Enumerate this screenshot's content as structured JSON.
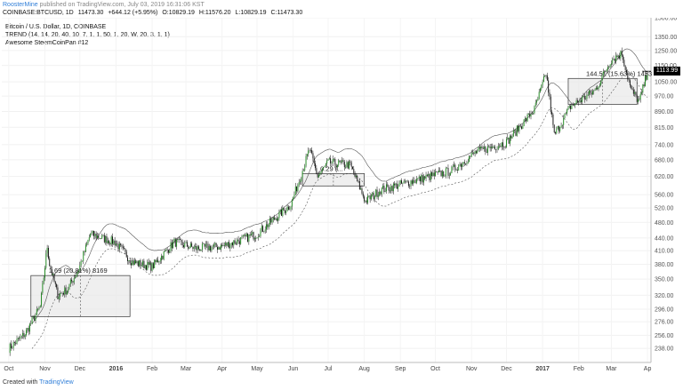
{
  "header": {
    "author": "RoosterMine",
    "published": "published on TradingView.com, July 03, 2019 16:31:06 KST",
    "symbol": "COINBASE:BTCUSD, 1D",
    "open": "11473.30",
    "change": "+644.12 (+5.95%)",
    "ohlc_o": "O:10829.19",
    "ohlc_h": "H:11576.20",
    "ohlc_l": "L:10829.19",
    "ohlc_c": "C:11473.30"
  },
  "legend": {
    "title": "Bitcoin / U.S. Dollar, 1D, COINBASE",
    "trend": "TREND (14, 14, 20, 40, 10, 7, 1, 1, 50, 1, 20, W, 20, 3, 1, 1)",
    "indicator": "Awesome SteemCoinPan #12"
  },
  "footer": {
    "created_with": "Created with",
    "brand": "TradingView"
  },
  "colors": {
    "up": "#1e8c1e",
    "down": "#111111",
    "box_fill": "#e8e8e8",
    "dash": "#666666"
  },
  "chart_data": {
    "type": "candlestick",
    "y_scale": "log",
    "ylim": [
      220,
      1500
    ],
    "y_ticks": [
      "1500.00",
      "1350.00",
      "1250.00",
      "1150.00",
      "1050.00",
      "970.00",
      "890.00",
      "815.00",
      "740.00",
      "680.00",
      "620.00",
      "560.00",
      "520.00",
      "480.00",
      "440.00",
      "410.00",
      "380.00",
      "350.00",
      "320.00",
      "296.00",
      "276.00",
      "256.00",
      "238.00"
    ],
    "last_price_label": "1113.99",
    "x_ticks": [
      "Oct",
      "Nov",
      "Dec",
      "2016",
      "Feb",
      "Mar",
      "Apr",
      "May",
      "Jun",
      "Jul",
      "Aug",
      "Sep",
      "Oct",
      "Nov",
      "Dec",
      "2017",
      "Feb",
      "Mar",
      "Ap"
    ],
    "price_path": [
      [
        "2015-10-01",
        238
      ],
      [
        "2015-10-15",
        258
      ],
      [
        "2015-10-28",
        300
      ],
      [
        "2015-11-03",
        420
      ],
      [
        "2015-11-05",
        380
      ],
      [
        "2015-11-12",
        320
      ],
      [
        "2015-11-20",
        330
      ],
      [
        "2015-11-30",
        370
      ],
      [
        "2015-12-10",
        450
      ],
      [
        "2015-12-20",
        440
      ],
      [
        "2015-12-31",
        430
      ],
      [
        "2016-01-15",
        385
      ],
      [
        "2016-02-01",
        375
      ],
      [
        "2016-02-20",
        430
      ],
      [
        "2016-03-10",
        415
      ],
      [
        "2016-04-01",
        420
      ],
      [
        "2016-05-01",
        450
      ],
      [
        "2016-05-30",
        530
      ],
      [
        "2016-06-15",
        720
      ],
      [
        "2016-06-22",
        620
      ],
      [
        "2016-07-01",
        670
      ],
      [
        "2016-07-20",
        660
      ],
      [
        "2016-08-02",
        540
      ],
      [
        "2016-08-15",
        575
      ],
      [
        "2016-09-15",
        608
      ],
      [
        "2016-10-15",
        640
      ],
      [
        "2016-11-05",
        710
      ],
      [
        "2016-12-01",
        750
      ],
      [
        "2016-12-25",
        900
      ],
      [
        "2017-01-04",
        1100
      ],
      [
        "2017-01-11",
        780
      ],
      [
        "2017-01-25",
        915
      ],
      [
        "2017-02-15",
        1000
      ],
      [
        "2017-03-01",
        1190
      ],
      [
        "2017-03-10",
        1230
      ],
      [
        "2017-03-18",
        1000
      ],
      [
        "2017-03-25",
        940
      ],
      [
        "2017-04-01",
        1114
      ]
    ],
    "annotations": [
      {
        "label": "1.69 (20.81%) 8169",
        "x_start": "2015-10-20",
        "x_end": "2016-01-13",
        "y_low": 284,
        "y_high": 357
      },
      {
        "label": "0.29 (...",
        "x_start": "2016-06-09",
        "x_end": "2016-08-01",
        "y_low": 588,
        "y_high": 630
      },
      {
        "label": "144.51 (15.63%) 1453",
        "x_start": "2017-01-23",
        "x_end": "2017-03-23",
        "y_low": 926,
        "y_high": 1070
      }
    ]
  }
}
